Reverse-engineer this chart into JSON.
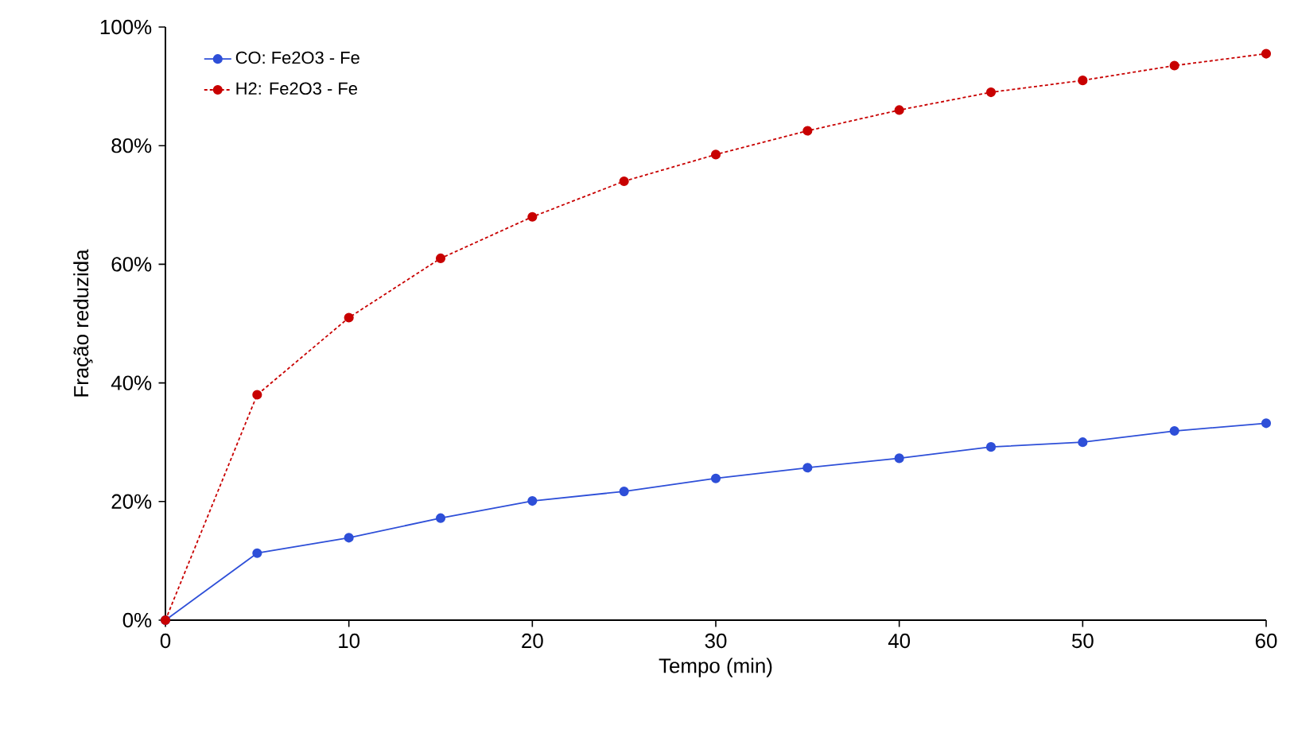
{
  "chart_data": {
    "type": "line",
    "xlabel": "Tempo (min)",
    "ylabel": "Fração reduzida",
    "x": [
      0,
      5,
      10,
      15,
      20,
      25,
      30,
      35,
      40,
      45,
      50,
      55,
      60
    ],
    "series": [
      {
        "name": "CO: Fe2O3 - Fe",
        "color": "#2e4fd8",
        "line_style": "solid",
        "values": [
          0,
          11.3,
          13.9,
          17.2,
          20.1,
          21.7,
          23.9,
          25.7,
          27.3,
          29.2,
          30,
          31.9,
          33.2
        ]
      },
      {
        "name": "H2: Fe2O3 - Fe",
        "color": "#c80000",
        "line_style": "dashed",
        "values": [
          0,
          38,
          51,
          61,
          68,
          74,
          78.5,
          82.5,
          86,
          89,
          91,
          93.5,
          95.5
        ]
      }
    ],
    "xlim": [
      0,
      60
    ],
    "xticks": [
      0,
      10,
      20,
      30,
      40,
      50,
      60
    ],
    "ylim": [
      0,
      100
    ],
    "yticks": [
      {
        "value": 0,
        "label": "0%"
      },
      {
        "value": 20,
        "label": "20%"
      },
      {
        "value": 40,
        "label": "40%"
      },
      {
        "value": 60,
        "label": "60%"
      },
      {
        "value": 80,
        "label": "80%"
      },
      {
        "value": 100,
        "label": "100%"
      }
    ],
    "marker": "circle",
    "legend": "top left",
    "grid": false
  }
}
